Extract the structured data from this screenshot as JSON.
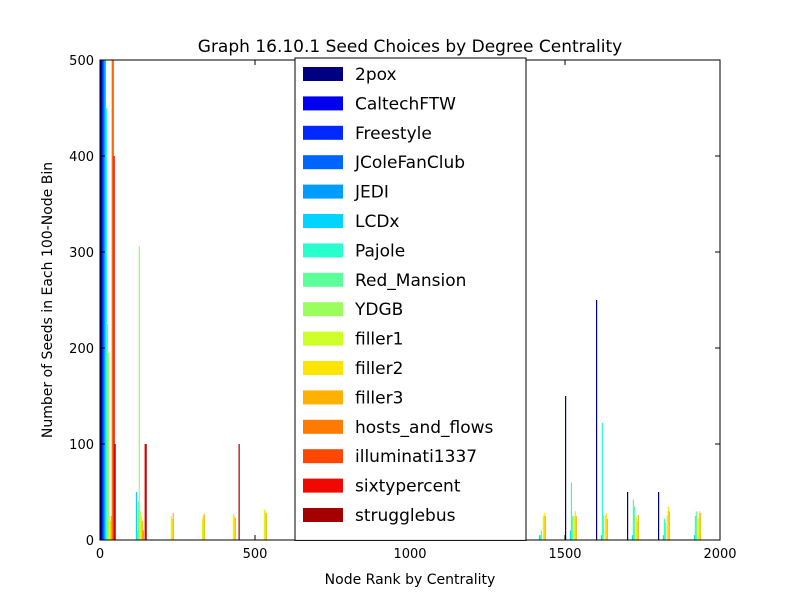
{
  "chart_data": {
    "type": "bar",
    "title": "Graph 16.10.1 Seed Choices by Degree Centrality",
    "xlabel": "Node Rank by Centrality",
    "ylabel": "Number of Seeds in Each 100-Node Bin",
    "xlim": [
      0,
      2000
    ],
    "ylim": [
      0,
      500
    ],
    "xticks": [
      0,
      500,
      1000,
      1500,
      2000
    ],
    "yticks": [
      0,
      100,
      200,
      300,
      400,
      500
    ],
    "bin_width": 100,
    "grid": false,
    "legend_position": "upper-center",
    "bins": [
      0,
      100,
      200,
      300,
      400,
      500,
      600,
      700,
      800,
      900,
      1000,
      1100,
      1200,
      1300,
      1400,
      1500,
      1600,
      1700,
      1800,
      1900
    ],
    "series": [
      {
        "name": "2pox",
        "color": "#000080",
        "values": [
          500,
          0,
          0,
          0,
          0,
          0,
          0,
          0,
          0,
          0,
          0,
          0,
          0,
          0,
          0,
          150,
          250,
          50,
          50,
          0
        ]
      },
      {
        "name": "CaltechFTW",
        "color": "#0000f1",
        "values": [
          500,
          0,
          0,
          0,
          0,
          0,
          0,
          0,
          0,
          0,
          0,
          0,
          0,
          0,
          0,
          0,
          0,
          0,
          0,
          0
        ]
      },
      {
        "name": "Freestyle",
        "color": "#0028ff",
        "values": [
          500,
          0,
          0,
          0,
          0,
          0,
          0,
          0,
          0,
          0,
          0,
          0,
          0,
          0,
          0,
          0,
          0,
          0,
          0,
          0
        ]
      },
      {
        "name": "JColeFanClub",
        "color": "#0064ff",
        "values": [
          500,
          0,
          0,
          0,
          0,
          0,
          0,
          0,
          0,
          0,
          0,
          0,
          0,
          0,
          0,
          0,
          0,
          0,
          0,
          0
        ]
      },
      {
        "name": "JEDI",
        "color": "#009cff",
        "values": [
          500,
          0,
          0,
          0,
          0,
          0,
          0,
          0,
          0,
          0,
          0,
          0,
          0,
          0,
          0,
          0,
          0,
          0,
          0,
          0
        ]
      },
      {
        "name": "LCDx",
        "color": "#00d4ff",
        "values": [
          500,
          50,
          0,
          0,
          0,
          0,
          0,
          0,
          0,
          0,
          0,
          0,
          0,
          5,
          5,
          10,
          5,
          5,
          5,
          5
        ]
      },
      {
        "name": "Pajole",
        "color": "#29ffce",
        "values": [
          450,
          10,
          0,
          0,
          0,
          0,
          0,
          0,
          0,
          0,
          0,
          0,
          5,
          5,
          5,
          60,
          122,
          42,
          22,
          25
        ]
      },
      {
        "name": "Red_Mansion",
        "color": "#5dff9a",
        "values": [
          225,
          40,
          0,
          0,
          0,
          0,
          0,
          0,
          0,
          0,
          0,
          0,
          10,
          10,
          10,
          25,
          25,
          35,
          18,
          30
        ]
      },
      {
        "name": "YDGB",
        "color": "#9aff5d",
        "values": [
          195,
          306,
          0,
          0,
          0,
          0,
          0,
          0,
          0,
          0,
          0,
          0,
          0,
          0,
          0,
          0,
          0,
          0,
          0,
          0
        ]
      },
      {
        "name": "filler1",
        "color": "#ceff29",
        "values": [
          25,
          30,
          25,
          22,
          27,
          32,
          24,
          22,
          20,
          26,
          24,
          28,
          22,
          26,
          25,
          25,
          25,
          24,
          26,
          22
        ]
      },
      {
        "name": "filler2",
        "color": "#ffe500",
        "values": [
          20,
          25,
          22,
          25,
          25,
          30,
          28,
          22,
          24,
          28,
          22,
          25,
          30,
          24,
          28,
          30,
          28,
          20,
          35,
          30
        ]
      },
      {
        "name": "filler3",
        "color": "#ffb100",
        "values": [
          25,
          20,
          28,
          27,
          23,
          28,
          26,
          25,
          22,
          24,
          26,
          24,
          25,
          23,
          25,
          25,
          22,
          26,
          30,
          28
        ]
      },
      {
        "name": "hosts_and_flows",
        "color": "#ff7a00",
        "values": [
          500,
          10,
          0,
          0,
          0,
          0,
          0,
          0,
          0,
          0,
          0,
          0,
          0,
          0,
          0,
          0,
          0,
          0,
          0,
          0
        ]
      },
      {
        "name": "illuminati1337",
        "color": "#ff4700",
        "values": [
          500,
          0,
          0,
          0,
          0,
          0,
          0,
          0,
          0,
          0,
          0,
          0,
          0,
          0,
          0,
          0,
          0,
          0,
          0,
          0
        ]
      },
      {
        "name": "sixtypercent",
        "color": "#f10800",
        "values": [
          400,
          100,
          0,
          0,
          0,
          0,
          0,
          0,
          0,
          0,
          0,
          0,
          0,
          0,
          0,
          0,
          0,
          0,
          0,
          0
        ]
      },
      {
        "name": "strugglebus",
        "color": "#a40000",
        "values": [
          100,
          100,
          0,
          0,
          100,
          0,
          0,
          0,
          0,
          0,
          0,
          0,
          0,
          50,
          0,
          0,
          0,
          0,
          0,
          0
        ]
      }
    ]
  }
}
